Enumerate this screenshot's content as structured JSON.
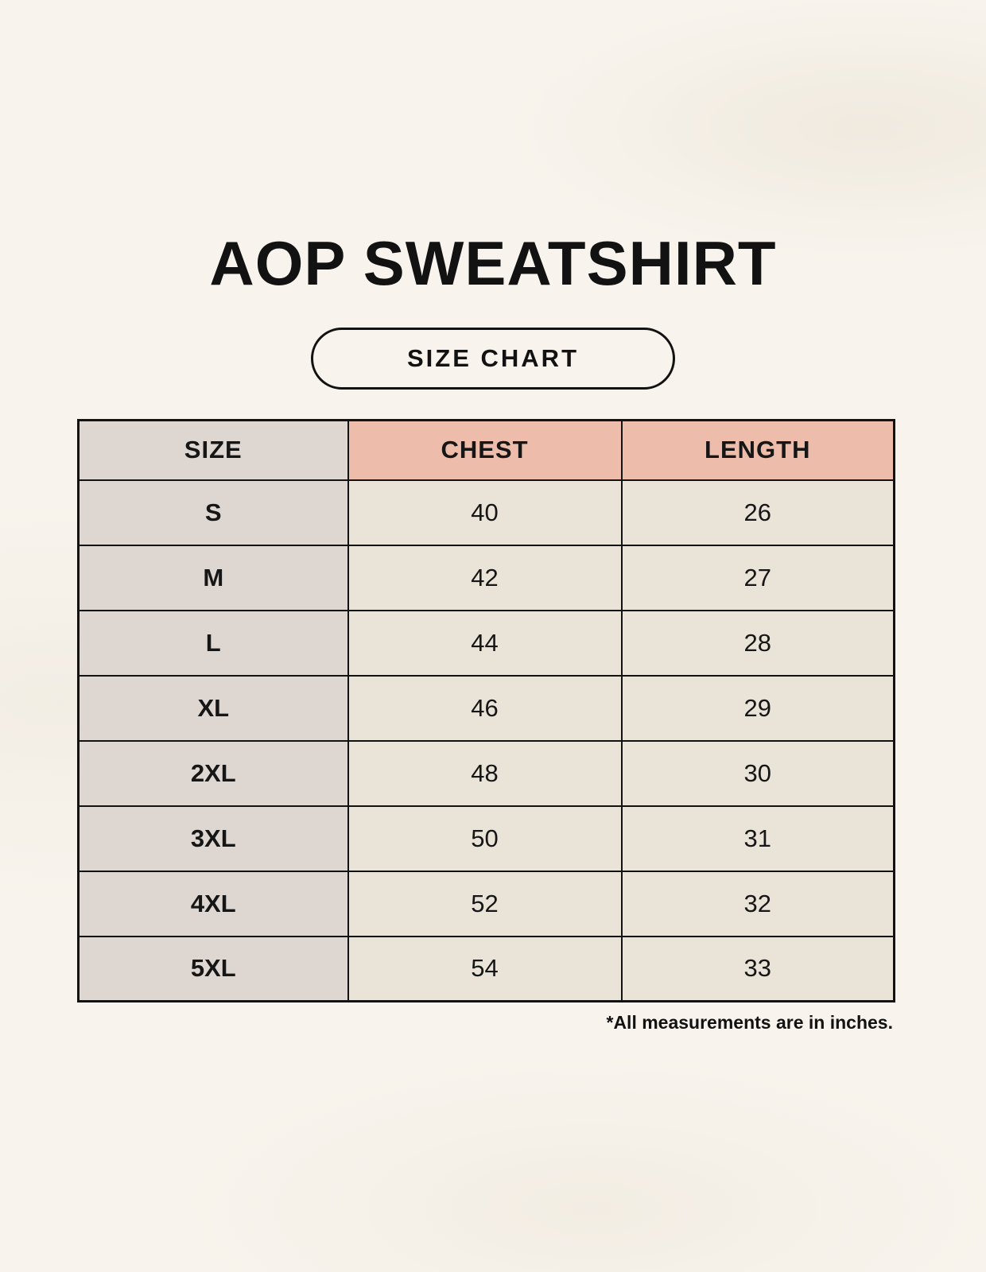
{
  "page": {
    "title": "AOP SWEATSHIRT",
    "badge_label": "SIZE CHART",
    "footnote": "*All measurements are in inches."
  },
  "table": {
    "columns": [
      "SIZE",
      "CHEST",
      "LENGTH"
    ],
    "rows": [
      {
        "size": "S",
        "chest": "40",
        "length": "26"
      },
      {
        "size": "M",
        "chest": "42",
        "length": "27"
      },
      {
        "size": "L",
        "chest": "44",
        "length": "28"
      },
      {
        "size": "XL",
        "chest": "46",
        "length": "29"
      },
      {
        "size": "2XL",
        "chest": "48",
        "length": "30"
      },
      {
        "size": "3XL",
        "chest": "50",
        "length": "31"
      },
      {
        "size": "4XL",
        "chest": "52",
        "length": "32"
      },
      {
        "size": "5XL",
        "chest": "54",
        "length": "33"
      }
    ],
    "unit_note": "inches"
  },
  "colors": {
    "background": "#f8f4ed",
    "header_size_bg": "#ded7d1",
    "header_accent_bg": "#edbcab",
    "row_label_bg": "#ded7d1",
    "value_cell_bg": "#eae3d8",
    "border": "#121212",
    "text": "#121212"
  }
}
